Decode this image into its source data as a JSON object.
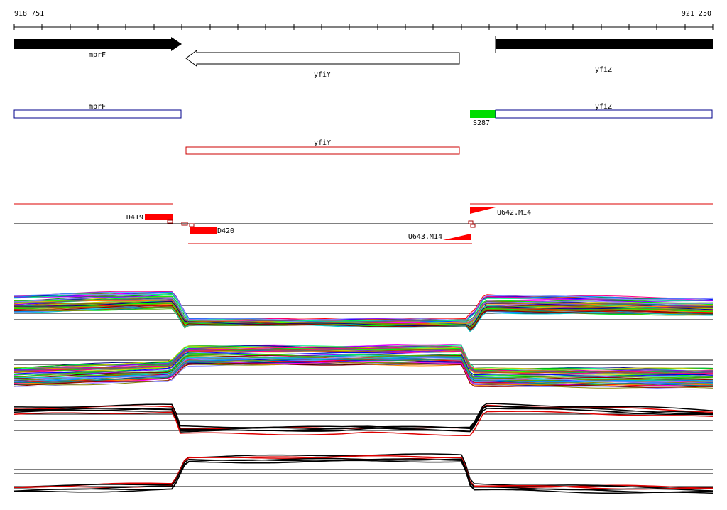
{
  "coords": {
    "start": "918 751",
    "end": "921 250"
  },
  "genes": [
    {
      "name": "mprF",
      "strand": "+",
      "fill": "#000000"
    },
    {
      "name": "yfiY",
      "strand": "-",
      "fill": "#ffffff"
    },
    {
      "name": "yfiZ",
      "strand": "+",
      "fill": "#000000"
    }
  ],
  "annotations": [
    {
      "name": "mprF",
      "color": "#00008b"
    },
    {
      "name": "yfiZ",
      "color": "#00008b"
    },
    {
      "name": "yfiY",
      "color": "#cc0000"
    }
  ],
  "site": {
    "name": "S287",
    "color": "#00dd00"
  },
  "regions": [
    {
      "name": "D419"
    },
    {
      "name": "D420"
    },
    {
      "name": "U642.M14"
    },
    {
      "name": "U643.M14"
    }
  ],
  "colors": {
    "feature_red": "#ff0000",
    "line_red": "#dd0000",
    "axis": "#000000"
  }
}
